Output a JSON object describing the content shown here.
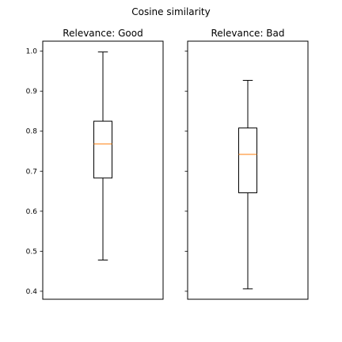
{
  "chart_data": [
    {
      "type": "box",
      "title": "Relevance: Good",
      "ylim": [
        0.38,
        1.025
      ],
      "yticks": [
        "0.4",
        "0.5",
        "0.6",
        "0.7",
        "0.8",
        "0.9",
        "1.0"
      ],
      "box": {
        "whislo": 0.478,
        "q1": 0.683,
        "med": 0.768,
        "q3": 0.825,
        "whishi": 0.998
      },
      "colors": {
        "median": "#ff7f0e",
        "line": "#000000"
      }
    },
    {
      "type": "box",
      "title": "Relevance: Bad",
      "ylim": [
        0.38,
        1.025
      ],
      "yticks": [
        "0.4",
        "0.5",
        "0.6",
        "0.7",
        "0.8",
        "0.9",
        "1.0"
      ],
      "box": {
        "whislo": 0.406,
        "q1": 0.646,
        "med": 0.742,
        "q3": 0.808,
        "whishi": 0.927
      },
      "colors": {
        "median": "#ff7f0e",
        "line": "#000000"
      }
    }
  ],
  "suptitle": "Cosine similarity"
}
